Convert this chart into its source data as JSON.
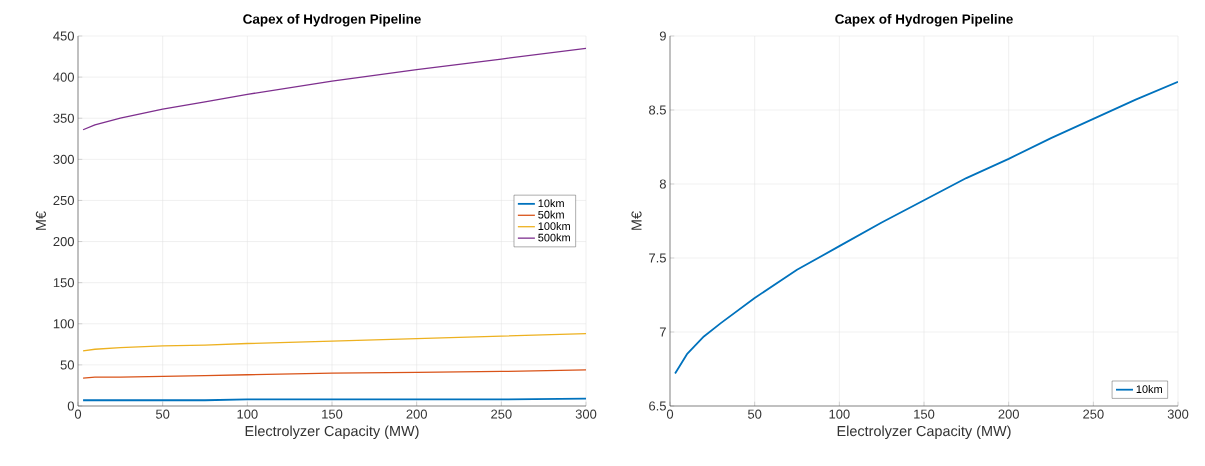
{
  "chart_data": [
    {
      "type": "line",
      "title": "Capex of Hydrogen Pipeline",
      "xlabel": "Electrolyzer Capacity (MW)",
      "ylabel": "M€",
      "x": [
        3,
        10,
        25,
        50,
        75,
        100,
        150,
        200,
        250,
        300
      ],
      "series": [
        {
          "name": "10km",
          "color": "#0072bd",
          "values": [
            7,
            7,
            7,
            7,
            7,
            8,
            8,
            8,
            8,
            9
          ]
        },
        {
          "name": "50km",
          "color": "#d95319",
          "values": [
            34,
            35,
            35,
            36,
            37,
            38,
            40,
            41,
            42,
            44
          ]
        },
        {
          "name": "100km",
          "color": "#edb120",
          "values": [
            67,
            69,
            71,
            73,
            74,
            76,
            79,
            82,
            85,
            88
          ]
        },
        {
          "name": "500km",
          "color": "#7e2f8e",
          "values": [
            336,
            342,
            350,
            361,
            370,
            379,
            395,
            409,
            422,
            435
          ]
        }
      ],
      "xlim": [
        0,
        300
      ],
      "xticks": [
        0,
        50,
        100,
        150,
        200,
        250,
        300
      ],
      "ylim": [
        0,
        450
      ],
      "yticks": [
        0,
        50,
        100,
        150,
        200,
        250,
        300,
        350,
        400,
        450
      ],
      "grid": true,
      "legend": "right",
      "marker": "none",
      "line_style": "solid"
    },
    {
      "type": "line",
      "title": "Capex of Hydrogen Pipeline",
      "xlabel": "Electrolyzer Capacity (MW)",
      "ylabel": "M€",
      "x": [
        3,
        10,
        20,
        30,
        50,
        75,
        100,
        125,
        150,
        175,
        200,
        225,
        250,
        275,
        300
      ],
      "series": [
        {
          "name": "10km",
          "color": "#0072bd",
          "values": [
            6.72,
            6.85,
            6.97,
            7.06,
            7.23,
            7.42,
            7.58,
            7.74,
            7.89,
            8.04,
            8.17,
            8.31,
            8.44,
            8.57,
            8.69
          ]
        }
      ],
      "xlim": [
        0,
        300
      ],
      "xticks": [
        0,
        50,
        100,
        150,
        200,
        250,
        300
      ],
      "ylim": [
        6.5,
        9
      ],
      "yticks": [
        6.5,
        7,
        7.5,
        8,
        8.5,
        9
      ],
      "grid": true,
      "legend": "bottom right",
      "marker": "none",
      "line_style": "solid"
    }
  ]
}
